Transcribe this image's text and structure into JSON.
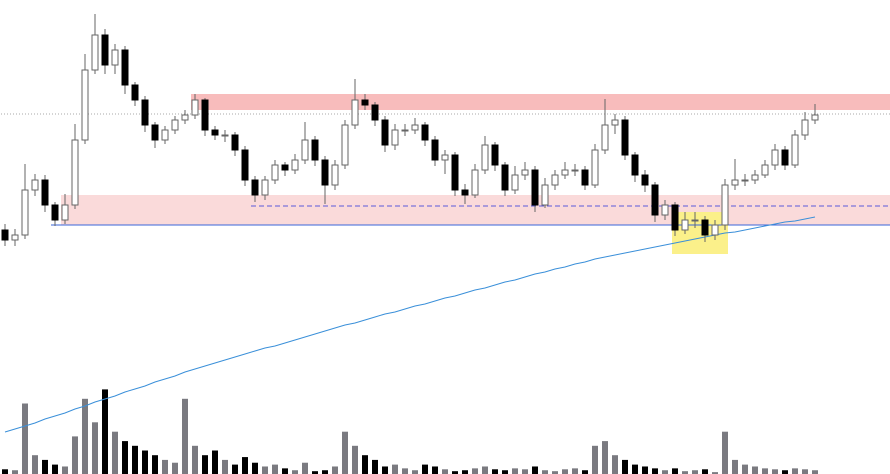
{
  "chart_data": {
    "type": "candlestick",
    "ylim": [
      0,
      474
    ],
    "open": [
      244,
      234,
      239,
      284,
      294,
      269,
      254,
      269,
      334,
      404,
      439,
      409,
      424,
      389,
      374,
      349,
      334,
      344,
      354,
      359,
      374,
      344,
      339,
      339,
      324,
      294,
      279,
      294,
      309,
      304,
      314,
      334,
      314,
      289,
      309,
      349,
      374,
      369,
      354,
      329,
      344,
      344,
      349,
      334,
      314,
      319,
      284,
      279,
      304,
      329,
      309,
      284,
      299,
      304,
      269,
      289,
      299,
      304,
      304,
      289,
      324,
      349,
      354,
      319,
      299,
      289,
      259,
      269,
      244,
      254,
      254,
      239,
      249,
      289,
      294,
      294,
      299,
      309,
      324,
      309,
      339,
      354
    ],
    "high": [
      250,
      245,
      310,
      300,
      299,
      272,
      280,
      350,
      420,
      460,
      445,
      430,
      428,
      392,
      378,
      352,
      348,
      358,
      364,
      380,
      376,
      348,
      344,
      342,
      328,
      298,
      298,
      314,
      312,
      320,
      352,
      338,
      318,
      314,
      354,
      395,
      380,
      372,
      358,
      350,
      350,
      356,
      352,
      338,
      324,
      322,
      290,
      310,
      338,
      332,
      312,
      308,
      312,
      308,
      296,
      304,
      312,
      310,
      308,
      330,
      375,
      360,
      358,
      322,
      304,
      292,
      274,
      272,
      262,
      262,
      258,
      254,
      295,
      315,
      300,
      304,
      314,
      330,
      328,
      344,
      362,
      370
    ],
    "low": [
      228,
      228,
      235,
      278,
      262,
      248,
      250,
      265,
      330,
      400,
      400,
      400,
      380,
      368,
      342,
      326,
      330,
      340,
      350,
      355,
      338,
      334,
      332,
      318,
      288,
      272,
      274,
      290,
      298,
      300,
      310,
      308,
      270,
      284,
      305,
      345,
      364,
      348,
      322,
      324,
      338,
      340,
      328,
      308,
      300,
      278,
      270,
      276,
      300,
      303,
      278,
      280,
      294,
      262,
      266,
      284,
      295,
      298,
      284,
      286,
      320,
      340,
      314,
      292,
      282,
      252,
      254,
      238,
      240,
      246,
      232,
      234,
      244,
      284,
      288,
      290,
      296,
      304,
      304,
      306,
      334,
      350
    ],
    "close": [
      234,
      239,
      284,
      294,
      269,
      254,
      269,
      334,
      404,
      439,
      409,
      424,
      389,
      374,
      349,
      334,
      344,
      354,
      359,
      374,
      344,
      339,
      339,
      324,
      294,
      279,
      294,
      309,
      304,
      314,
      334,
      314,
      289,
      309,
      349,
      374,
      369,
      354,
      329,
      344,
      344,
      349,
      334,
      314,
      319,
      284,
      279,
      304,
      329,
      309,
      284,
      299,
      304,
      269,
      289,
      299,
      304,
      304,
      289,
      324,
      349,
      354,
      319,
      299,
      289,
      259,
      269,
      244,
      254,
      254,
      239,
      249,
      289,
      294,
      294,
      299,
      309,
      324,
      309,
      339,
      354,
      359
    ],
    "up_color": "#ffffff",
    "down_color": "#000000",
    "wick_color": "#666666",
    "moving_average": {
      "color": "#3a8fd9",
      "values": [
        42,
        45,
        48,
        51,
        55,
        58,
        61,
        65,
        68,
        72,
        75,
        78,
        82,
        85,
        88,
        92,
        95,
        98,
        102,
        105,
        108,
        111,
        114,
        117,
        120,
        123,
        126,
        128,
        131,
        134,
        137,
        140,
        143,
        146,
        149,
        151,
        154,
        157,
        160,
        162,
        165,
        168,
        170,
        173,
        176,
        178,
        181,
        184,
        186,
        189,
        192,
        194,
        197,
        200,
        202,
        205,
        207,
        210,
        212,
        215,
        217,
        219,
        221,
        223,
        225,
        227,
        229,
        231,
        233,
        235,
        237,
        239,
        241,
        242,
        244,
        246,
        248,
        250,
        252,
        253,
        255,
        257
      ]
    },
    "volume": {
      "ylim": [
        0,
        100
      ],
      "up_color": "#7a7a80",
      "down_color": "#000000",
      "values": [
        5,
        4,
        75,
        20,
        15,
        10,
        8,
        40,
        80,
        55,
        90,
        45,
        35,
        30,
        25,
        20,
        15,
        12,
        80,
        30,
        20,
        25,
        15,
        10,
        18,
        12,
        8,
        10,
        6,
        4,
        12,
        3,
        4,
        8,
        45,
        30,
        20,
        15,
        8,
        10,
        6,
        4,
        10,
        8,
        5,
        3,
        4,
        6,
        8,
        5,
        4,
        6,
        5,
        8,
        4,
        3,
        5,
        6,
        4,
        30,
        35,
        20,
        15,
        10,
        8,
        6,
        4,
        6,
        3,
        4,
        5,
        2,
        45,
        15,
        10,
        8,
        6,
        5,
        4,
        6,
        5,
        4
      ]
    },
    "zones": [
      {
        "start": 19,
        "low": 364,
        "high": 380,
        "color": "#f8bcbc"
      },
      {
        "start": 6,
        "low": 249,
        "high": 279,
        "color": "#fadada"
      }
    ],
    "levels": [
      {
        "start": 5,
        "value": 249,
        "color": "#3a66d9",
        "style": "solid"
      },
      {
        "start": 25,
        "value": 268,
        "color": "#5a5ad9",
        "style": "dashed"
      },
      {
        "start": 0,
        "value": 360,
        "color": "#aaaaaa",
        "style": "dotted"
      }
    ],
    "highlight": {
      "from": 67,
      "to": 72,
      "low": 220,
      "high": 262,
      "color": "#fbf08a"
    }
  }
}
